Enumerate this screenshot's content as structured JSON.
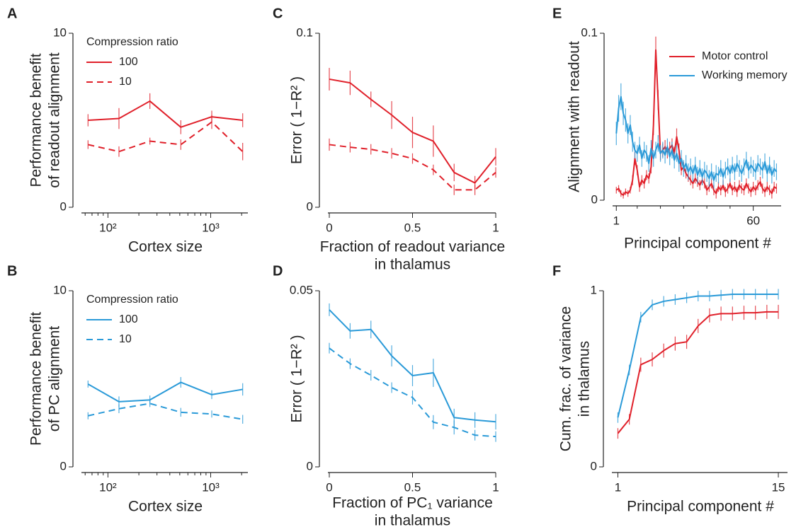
{
  "chart_data": [
    {
      "type": "line",
      "panel": "A",
      "xscale": "log",
      "xlim": [
        57,
        2300
      ],
      "ylim": [
        0,
        10
      ],
      "xticks": [
        {
          "value": 100,
          "label": "10²"
        },
        {
          "value": 1000,
          "label": "10³"
        }
      ],
      "xminorticks": [
        60,
        70,
        80,
        90,
        200,
        300,
        400,
        500,
        600,
        700,
        800,
        900,
        2000
      ],
      "yticks": [
        0,
        10
      ],
      "xlabel": [
        "Cortex size"
      ],
      "ylabel": [
        "Performance benefit",
        "of readout alignment"
      ],
      "legend_title": "Compression ratio",
      "x": [
        64,
        128,
        256,
        512,
        1024,
        2048
      ],
      "series": [
        {
          "name": "100",
          "color": "#e0202a",
          "dash": false,
          "values": [
            5.0,
            5.1,
            6.1,
            4.6,
            5.2,
            5.0
          ],
          "errors": [
            0.35,
            0.6,
            0.45,
            0.4,
            0.35,
            0.4
          ]
        },
        {
          "name": "10",
          "color": "#e0202a",
          "dash": true,
          "values": [
            3.6,
            3.2,
            3.8,
            3.6,
            4.9,
            3.2
          ],
          "errors": [
            0.25,
            0.3,
            0.2,
            0.3,
            0.4,
            0.5
          ]
        }
      ]
    },
    {
      "type": "line",
      "panel": "B",
      "xscale": "log",
      "xlim": [
        57,
        2300
      ],
      "ylim": [
        0,
        10
      ],
      "xticks": [
        {
          "value": 100,
          "label": "10²"
        },
        {
          "value": 1000,
          "label": "10³"
        }
      ],
      "xminorticks": [
        60,
        70,
        80,
        90,
        200,
        300,
        400,
        500,
        600,
        700,
        800,
        900,
        2000
      ],
      "yticks": [
        0,
        10
      ],
      "xlabel": [
        "Cortex size"
      ],
      "ylabel": [
        "Performance benefit",
        "of PC alignment"
      ],
      "legend_title": "Compression ratio",
      "x": [
        64,
        128,
        256,
        512,
        1024,
        2048
      ],
      "series": [
        {
          "name": "100",
          "color": "#2a9ad8",
          "dash": false,
          "values": [
            4.7,
            3.7,
            3.8,
            4.8,
            4.1,
            4.4
          ],
          "errors": [
            0.2,
            0.3,
            0.25,
            0.3,
            0.25,
            0.35
          ]
        },
        {
          "name": "10",
          "color": "#2a9ad8",
          "dash": true,
          "values": [
            2.9,
            3.3,
            3.6,
            3.1,
            3.0,
            2.7
          ],
          "errors": [
            0.2,
            0.25,
            0.2,
            0.25,
            0.2,
            0.25
          ]
        }
      ]
    },
    {
      "type": "line",
      "panel": "C",
      "xlim": [
        0,
        1
      ],
      "ylim": [
        0,
        0.1
      ],
      "xticks": [
        0,
        0.5,
        1
      ],
      "yticks": [
        0,
        0.1
      ],
      "xlabel": [
        "Fraction of readout variance",
        "in thalamus"
      ],
      "ylabel": [
        "Error ( 1−R² )"
      ],
      "x": [
        0,
        0.125,
        0.25,
        0.375,
        0.5,
        0.625,
        0.75,
        0.875,
        1
      ],
      "series": [
        {
          "name": "100",
          "color": "#e0202a",
          "dash": false,
          "values": [
            0.0736,
            0.0715,
            0.062,
            0.053,
            0.043,
            0.038,
            0.02,
            0.014,
            0.029
          ],
          "errors": [
            0.0065,
            0.007,
            0.0045,
            0.008,
            0.009,
            0.009,
            0.005,
            0.004,
            0.005
          ]
        },
        {
          "name": "10",
          "color": "#e0202a",
          "dash": true,
          "values": [
            0.036,
            0.0345,
            0.0333,
            0.031,
            0.028,
            0.0215,
            0.01,
            0.01,
            0.02
          ],
          "errors": [
            0.0035,
            0.003,
            0.003,
            0.003,
            0.003,
            0.003,
            0.003,
            0.003,
            0.003
          ]
        }
      ]
    },
    {
      "type": "line",
      "panel": "D",
      "xlim": [
        0,
        1
      ],
      "ylim": [
        0,
        0.05
      ],
      "xticks": [
        0,
        0.5,
        1
      ],
      "yticks": [
        0,
        0.05
      ],
      "xlabel": [
        "Fraction of PC₁ variance",
        "in thalamus"
      ],
      "ylabel": [
        "Error ( 1−R² )"
      ],
      "x": [
        0,
        0.125,
        0.25,
        0.375,
        0.5,
        0.625,
        0.75,
        0.875,
        1
      ],
      "series": [
        {
          "name": "100",
          "color": "#2a9ad8",
          "dash": false,
          "values": [
            0.0446,
            0.0386,
            0.039,
            0.0315,
            0.0259,
            0.0267,
            0.014,
            0.0133,
            0.0128
          ],
          "errors": [
            0.0018,
            0.0022,
            0.0025,
            0.003,
            0.003,
            0.004,
            0.0025,
            0.0022,
            0.0022
          ]
        },
        {
          "name": "10",
          "color": "#2a9ad8",
          "dash": true,
          "values": [
            0.0337,
            0.0293,
            0.026,
            0.0225,
            0.0197,
            0.0127,
            0.0112,
            0.009,
            0.0086
          ],
          "errors": [
            0.0015,
            0.0015,
            0.0015,
            0.0015,
            0.002,
            0.002,
            0.002,
            0.0015,
            0.0015
          ]
        }
      ]
    },
    {
      "type": "line",
      "panel": "E",
      "xlim": [
        0,
        72
      ],
      "ylim": [
        0,
        0.1
      ],
      "xticks": [
        1,
        60
      ],
      "xminorticks": [
        10,
        20,
        30,
        40,
        50
      ],
      "yticks": [
        0,
        0.1
      ],
      "xlabel": [
        "Principal component #"
      ],
      "ylabel": [
        "Alignment with readout"
      ],
      "x": [
        1,
        2,
        3,
        4,
        5,
        6,
        7,
        8,
        9,
        10,
        11,
        12,
        13,
        14,
        15,
        16,
        17,
        18,
        19,
        20,
        21,
        22,
        23,
        24,
        25,
        26,
        27,
        28,
        29,
        30,
        31,
        32,
        33,
        34,
        35,
        36,
        37,
        38,
        39,
        40,
        41,
        42,
        43,
        44,
        45,
        46,
        47,
        48,
        49,
        50,
        51,
        52,
        53,
        54,
        55,
        56,
        57,
        58,
        59,
        60,
        61,
        62,
        63,
        64,
        65,
        66,
        67,
        68,
        69,
        70
      ],
      "series": [
        {
          "name": "Motor control",
          "color": "#e0202a",
          "dash": false,
          "values": [
            0.006,
            0.007,
            0.004,
            0.003,
            0.005,
            0.004,
            0.006,
            0.012,
            0.025,
            0.018,
            0.008,
            0.012,
            0.01,
            0.015,
            0.013,
            0.02,
            0.045,
            0.09,
            0.06,
            0.028,
            0.03,
            0.032,
            0.029,
            0.031,
            0.033,
            0.028,
            0.038,
            0.03,
            0.018,
            0.02,
            0.016,
            0.014,
            0.012,
            0.01,
            0.013,
            0.011,
            0.009,
            0.012,
            0.01,
            0.006,
            0.008,
            0.01,
            0.006,
            0.004,
            0.008,
            0.006,
            0.009,
            0.005,
            0.007,
            0.01,
            0.006,
            0.008,
            0.005,
            0.009,
            0.007,
            0.006,
            0.01,
            0.007,
            0.005,
            0.008,
            0.006,
            0.009,
            0.011,
            0.007,
            0.005,
            0.008,
            0.006,
            0.004,
            0.008,
            0.007
          ],
          "errors": [
            0.002,
            0.002,
            0.002,
            0.002,
            0.002,
            0.002,
            0.002,
            0.003,
            0.004,
            0.003,
            0.003,
            0.003,
            0.003,
            0.003,
            0.003,
            0.004,
            0.006,
            0.008,
            0.006,
            0.004,
            0.004,
            0.004,
            0.004,
            0.004,
            0.004,
            0.004,
            0.005,
            0.004,
            0.003,
            0.003,
            0.003,
            0.003,
            0.003,
            0.003,
            0.003,
            0.003,
            0.003,
            0.003,
            0.003,
            0.003,
            0.003,
            0.003,
            0.003,
            0.003,
            0.003,
            0.003,
            0.003,
            0.003,
            0.003,
            0.003,
            0.003,
            0.003,
            0.003,
            0.003,
            0.003,
            0.003,
            0.003,
            0.003,
            0.003,
            0.003,
            0.003,
            0.003,
            0.003,
            0.003,
            0.003,
            0.003,
            0.003,
            0.003,
            0.003,
            0.003
          ]
        },
        {
          "name": "Working memory",
          "color": "#2a9ad8",
          "dash": false,
          "values": [
            0.04,
            0.055,
            0.062,
            0.052,
            0.048,
            0.04,
            0.045,
            0.035,
            0.03,
            0.028,
            0.033,
            0.025,
            0.03,
            0.028,
            0.022,
            0.031,
            0.025,
            0.03,
            0.034,
            0.028,
            0.03,
            0.027,
            0.032,
            0.026,
            0.03,
            0.024,
            0.028,
            0.022,
            0.025,
            0.019,
            0.022,
            0.017,
            0.02,
            0.016,
            0.021,
            0.015,
            0.019,
            0.014,
            0.018,
            0.016,
            0.013,
            0.017,
            0.012,
            0.016,
            0.015,
            0.019,
            0.014,
            0.018,
            0.02,
            0.016,
            0.021,
            0.017,
            0.022,
            0.019,
            0.016,
            0.02,
            0.024,
            0.018,
            0.021,
            0.019,
            0.017,
            0.022,
            0.02,
            0.018,
            0.023,
            0.016,
            0.021,
            0.015,
            0.019,
            0.017
          ],
          "errors": [
            0.007,
            0.008,
            0.008,
            0.007,
            0.007,
            0.006,
            0.006,
            0.006,
            0.005,
            0.005,
            0.005,
            0.005,
            0.005,
            0.005,
            0.005,
            0.005,
            0.005,
            0.005,
            0.005,
            0.005,
            0.005,
            0.005,
            0.005,
            0.005,
            0.005,
            0.005,
            0.005,
            0.005,
            0.005,
            0.005,
            0.005,
            0.005,
            0.005,
            0.005,
            0.005,
            0.005,
            0.005,
            0.005,
            0.005,
            0.005,
            0.005,
            0.005,
            0.005,
            0.005,
            0.005,
            0.005,
            0.005,
            0.005,
            0.005,
            0.005,
            0.005,
            0.005,
            0.005,
            0.005,
            0.005,
            0.005,
            0.005,
            0.005,
            0.005,
            0.005,
            0.005,
            0.005,
            0.005,
            0.005,
            0.005,
            0.005,
            0.005,
            0.005,
            0.005,
            0.005
          ]
        }
      ]
    },
    {
      "type": "line",
      "panel": "F",
      "xlim": [
        0.6,
        15.8
      ],
      "ylim": [
        0,
        1
      ],
      "xticks": [
        1,
        15
      ],
      "yticks": [
        0,
        1
      ],
      "xlabel": [
        "Principal component #"
      ],
      "ylabel": [
        "Cum. frac. of variance",
        "in thalamus"
      ],
      "x": [
        1,
        2,
        3,
        4,
        5,
        6,
        7,
        8,
        9,
        10,
        11,
        12,
        13,
        14,
        15
      ],
      "series": [
        {
          "name": "Motor control",
          "color": "#e0202a",
          "dash": false,
          "values": [
            0.19,
            0.27,
            0.58,
            0.61,
            0.66,
            0.7,
            0.71,
            0.8,
            0.86,
            0.87,
            0.87,
            0.875,
            0.875,
            0.88,
            0.88
          ],
          "errors": [
            0.03,
            0.03,
            0.04,
            0.04,
            0.04,
            0.04,
            0.04,
            0.04,
            0.04,
            0.04,
            0.04,
            0.04,
            0.04,
            0.04,
            0.04
          ]
        },
        {
          "name": "Working memory",
          "color": "#2a9ad8",
          "dash": false,
          "values": [
            0.28,
            0.55,
            0.85,
            0.92,
            0.94,
            0.95,
            0.96,
            0.97,
            0.97,
            0.975,
            0.98,
            0.98,
            0.98,
            0.98,
            0.98
          ],
          "errors": [
            0.03,
            0.03,
            0.03,
            0.03,
            0.03,
            0.03,
            0.03,
            0.03,
            0.03,
            0.03,
            0.03,
            0.03,
            0.03,
            0.03,
            0.03
          ]
        }
      ]
    }
  ]
}
